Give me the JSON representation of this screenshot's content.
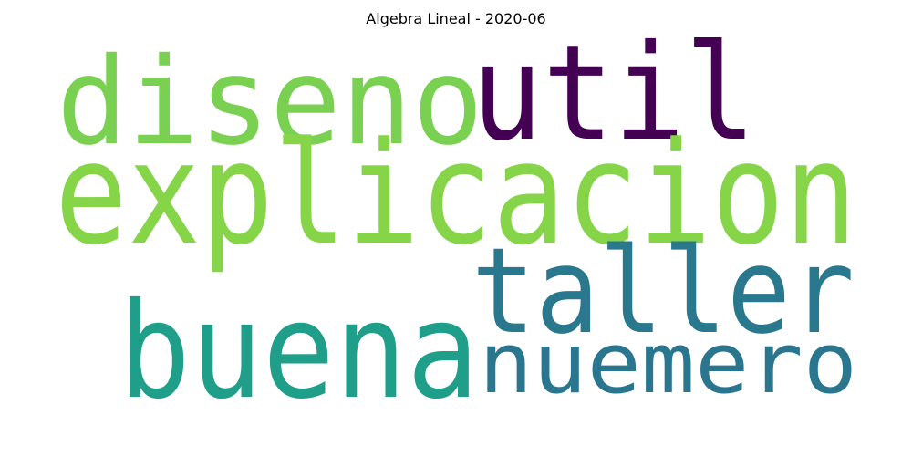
{
  "title": "Algebra Lineal - 2020-06",
  "words": [
    {
      "text": "disenо",
      "color": "#7ad151"
    },
    {
      "text": "util",
      "color": "#440154"
    },
    {
      "text": "explicacion",
      "color": "#86d549"
    },
    {
      "text": "taller",
      "color": "#2a788e"
    },
    {
      "text": "buena",
      "color": "#1f9e89"
    },
    {
      "text": "nuemero",
      "color": "#2a768e"
    }
  ]
}
